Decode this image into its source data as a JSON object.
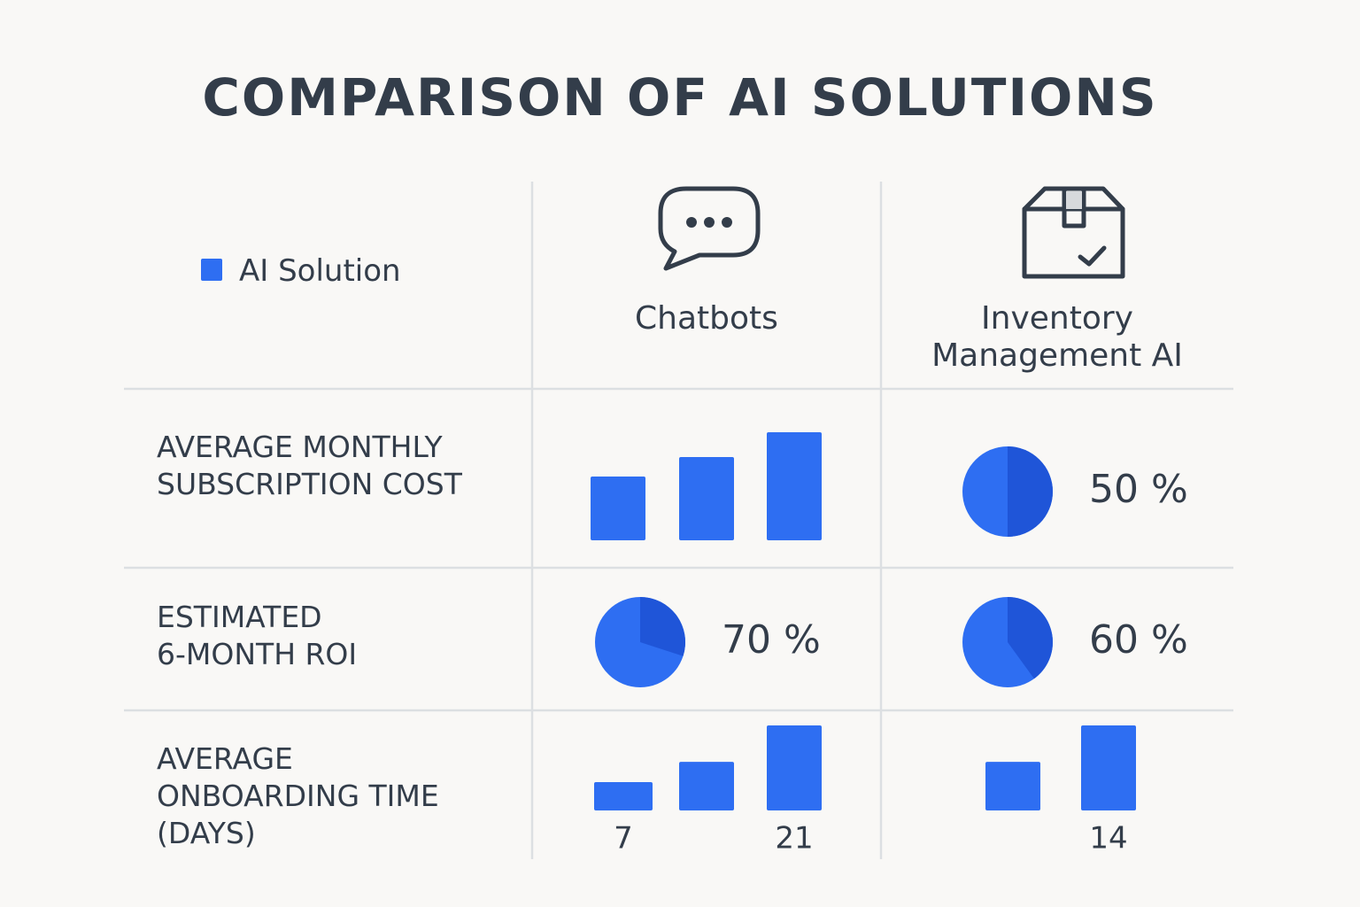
{
  "title": "COMPARISON OF AI SOLUTIONS",
  "legend": {
    "label": "AI Solution",
    "color": "#2e6ef2"
  },
  "columns": [
    {
      "lines": [
        "Chatbots"
      ]
    },
    {
      "lines": [
        "Inventory",
        "Management AI"
      ]
    }
  ],
  "rows": [
    {
      "lines": [
        "AVERAGE MONTHLY",
        "SUBSCRIPTION COST"
      ],
      "cells": [
        {
          "type": "bar",
          "values": [
            59,
            77,
            100
          ]
        },
        {
          "type": "pie",
          "values": [
            50
          ],
          "value_labels": [
            "50 %"
          ]
        }
      ]
    },
    {
      "lines": [
        "ESTIMATED",
        "6-MONTH ROI"
      ],
      "cells": [
        {
          "type": "pie",
          "values": [
            70
          ],
          "value_labels": [
            "70 %"
          ]
        },
        {
          "type": "pie",
          "values": [
            60
          ],
          "value_labels": [
            "60 %"
          ]
        }
      ]
    },
    {
      "lines": [
        "AVERAGE",
        "ONBOARDING TIME",
        "(DAYS)"
      ],
      "cells": [
        {
          "type": "bar",
          "values": [
            7,
            12,
            21
          ],
          "value_labels": [
            "7",
            null,
            "21"
          ]
        },
        {
          "type": "bar",
          "values": [
            8,
            14
          ],
          "value_labels": [
            null,
            "14"
          ]
        }
      ]
    }
  ]
}
